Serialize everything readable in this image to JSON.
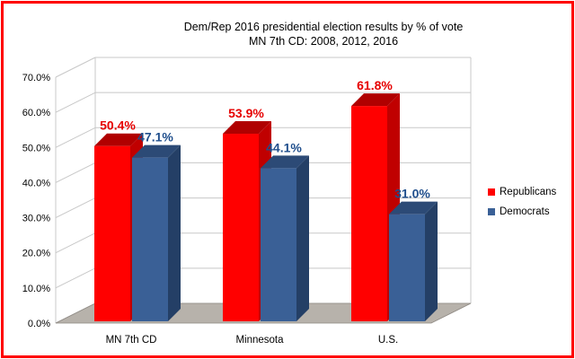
{
  "chart_data": {
    "type": "bar",
    "title_lines": [
      "Dem/Rep 2016 presidential election results by % of vote",
      "MN 7th CD:  2008, 2012, 2016"
    ],
    "categories": [
      "MN 7th  CD",
      "Minnesota",
      "U.S."
    ],
    "series": [
      {
        "name": "Republicans",
        "color": "#ff0000",
        "side_color": "#c00000",
        "top_color": "#b00000",
        "label_color": "#e60000",
        "values": [
          50.4,
          53.9,
          61.8
        ]
      },
      {
        "name": "Democrats",
        "color": "#3a6096",
        "side_color": "#243f66",
        "top_color": "#2c4a76",
        "label_color": "#1f4e8c",
        "values": [
          47.1,
          44.1,
          31.0
        ]
      }
    ],
    "data_labels": [
      [
        "50.4%",
        "53.9%",
        "61.8%"
      ],
      [
        "47.1%",
        "44.1%",
        "31.0%"
      ]
    ],
    "y_ticks": [
      "0.0%",
      "10.0%",
      "20.0%",
      "30.0%",
      "40.0%",
      "50.0%",
      "60.0%",
      "70.0%"
    ],
    "ylim": [
      0,
      70
    ],
    "legend_position": "right",
    "grid": true,
    "colors": {
      "border": "#ff0000",
      "floor": "#b7b2ab",
      "grid": "#c8c8c8"
    }
  }
}
